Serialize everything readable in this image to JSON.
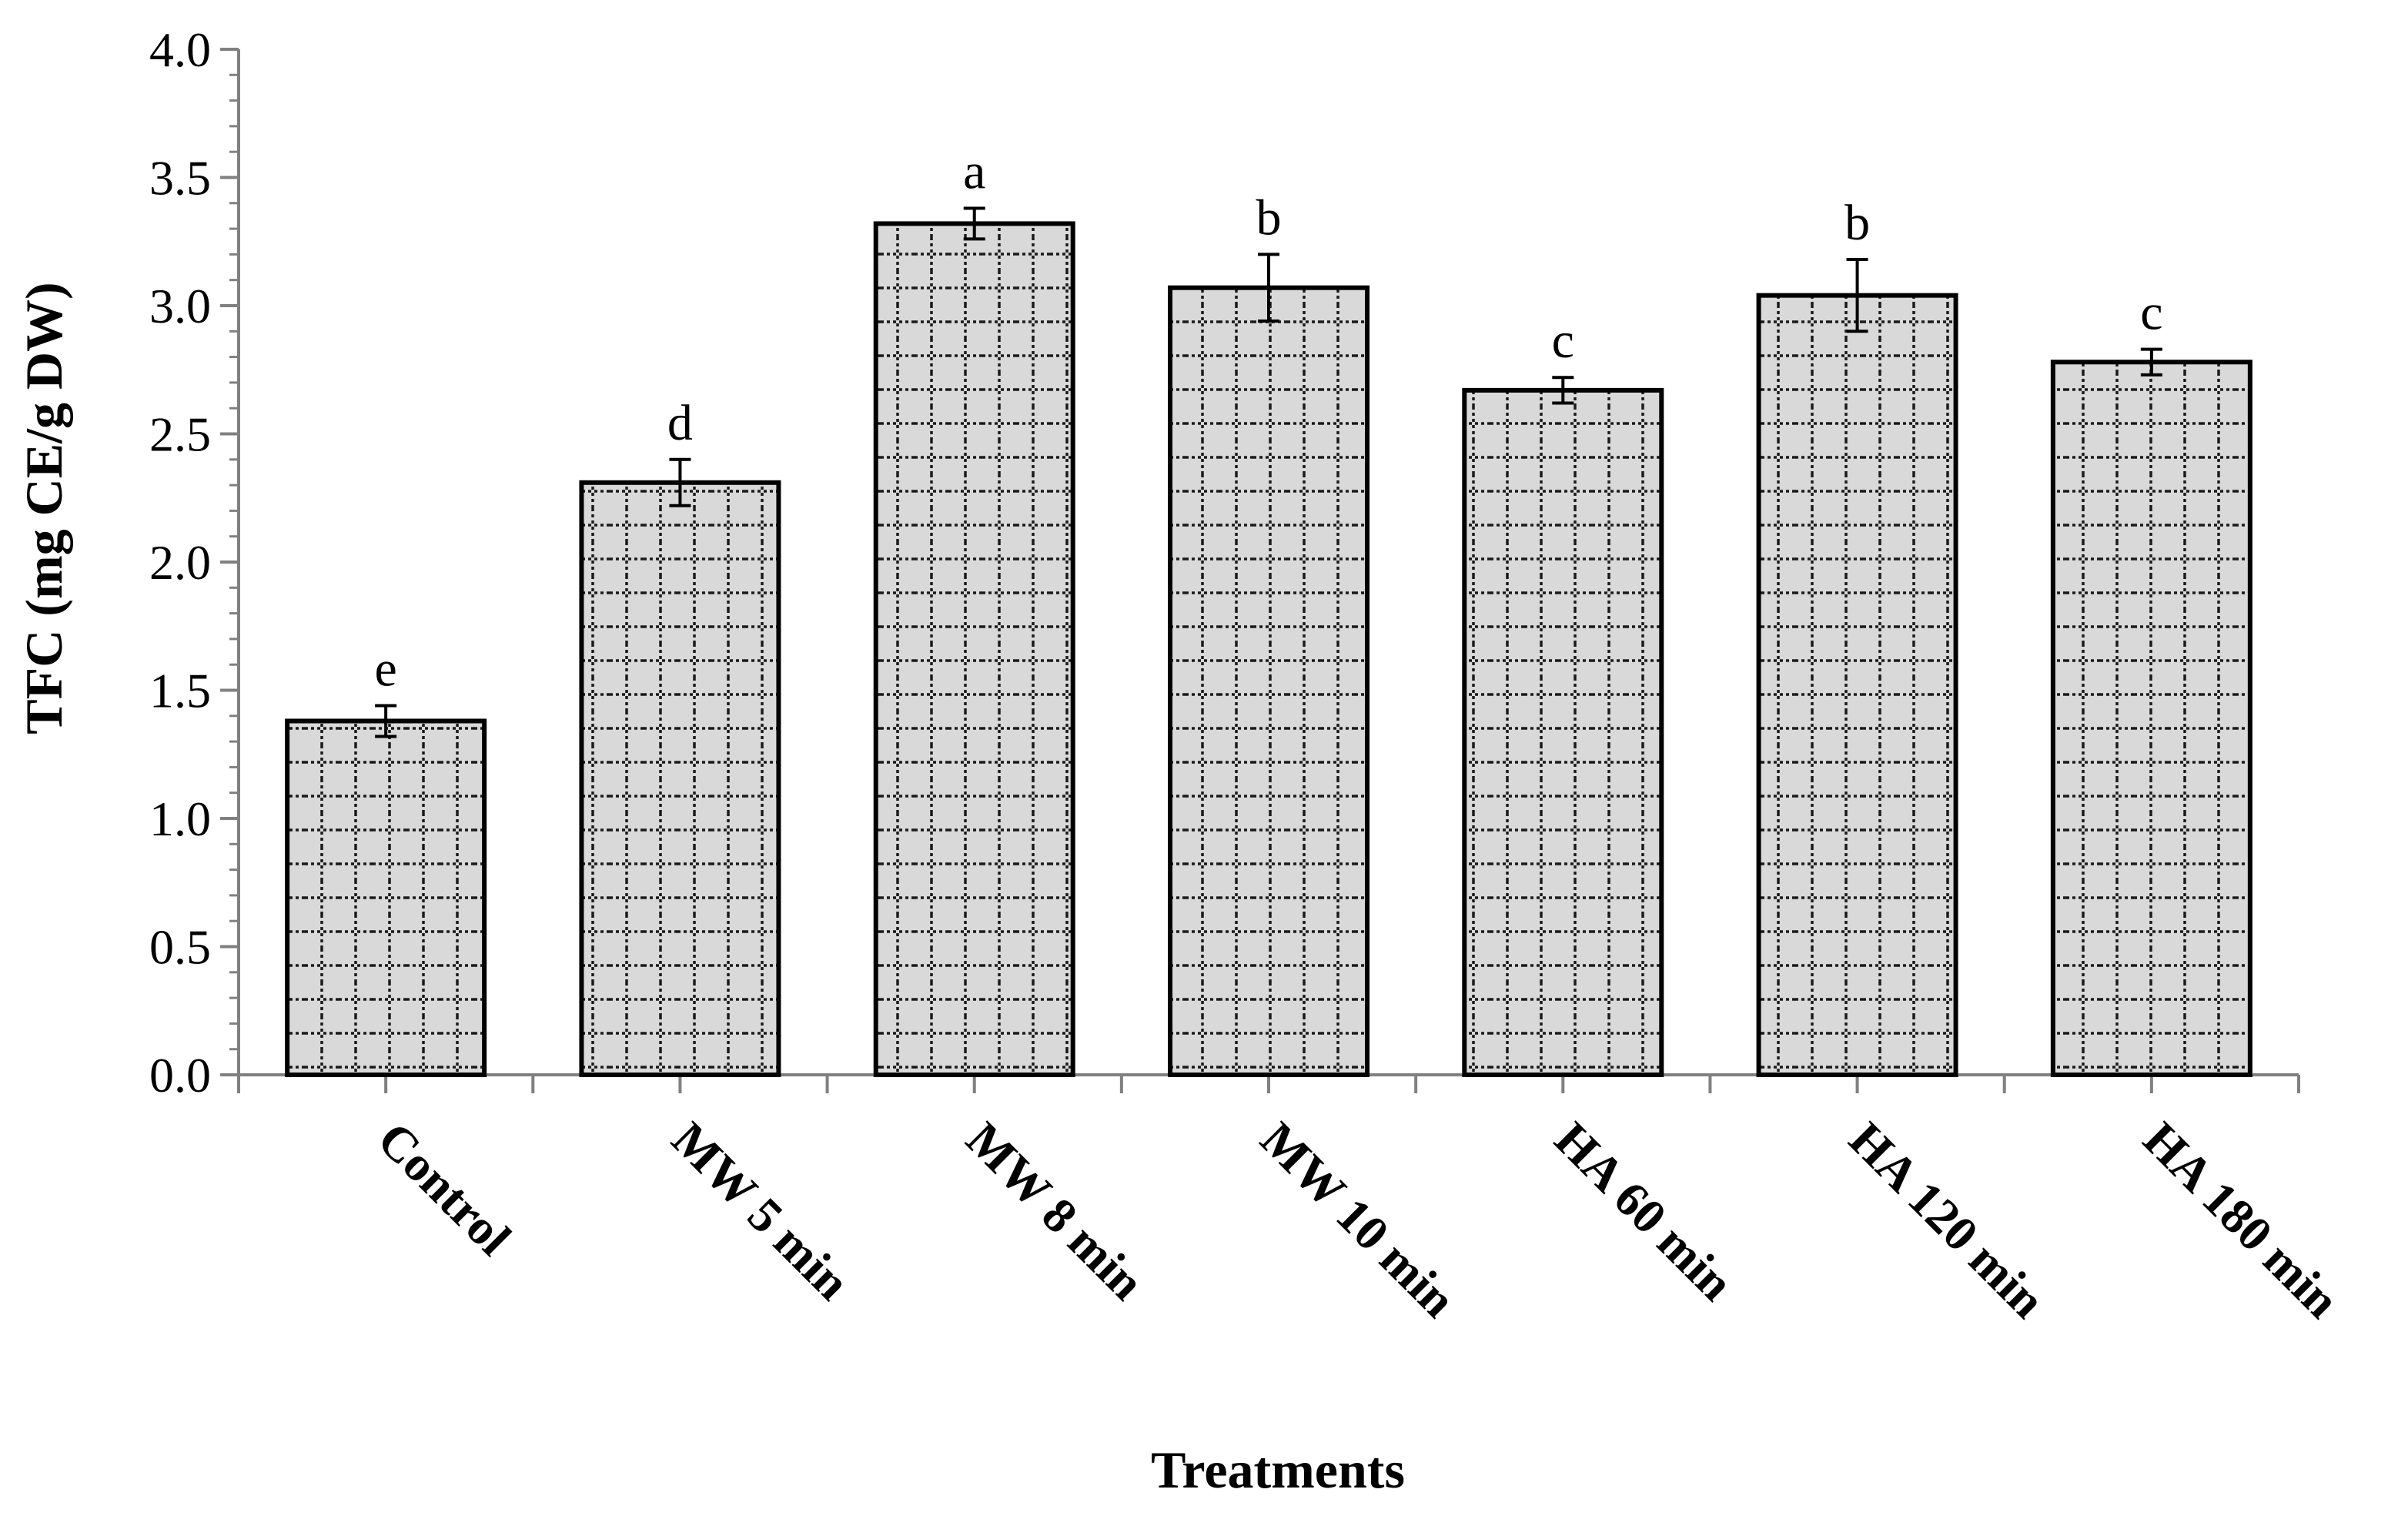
{
  "chart_data": {
    "type": "bar",
    "title": "",
    "xlabel": "Treatments",
    "ylabel": "TFC (mg CE/g DW)",
    "ylim": [
      0,
      4.0
    ],
    "ytick_step": 0.5,
    "ytick_labels": [
      "0.0",
      "0.5",
      "1.0",
      "1.5",
      "2.0",
      "2.5",
      "3.0",
      "3.5",
      "4.0"
    ],
    "minor_ticks_per_major": 5,
    "categories": [
      "Control",
      "MW 5 min",
      "MW 8 min",
      "MW 10 min",
      "HA 60 min",
      "HA 120 min",
      "HA 180 min"
    ],
    "values": [
      1.38,
      2.31,
      3.32,
      3.07,
      2.67,
      3.04,
      2.78
    ],
    "errors": [
      0.06,
      0.09,
      0.06,
      0.13,
      0.05,
      0.14,
      0.05
    ],
    "significance_letters": [
      "e",
      "d",
      "a",
      "b",
      "c",
      "b",
      "c"
    ],
    "bar_fill": "#d9d9d9",
    "bar_stroke": "#000000",
    "bar_pattern": "dotted-grid",
    "axis_color": "#808080",
    "grid": false,
    "legend": "none"
  }
}
